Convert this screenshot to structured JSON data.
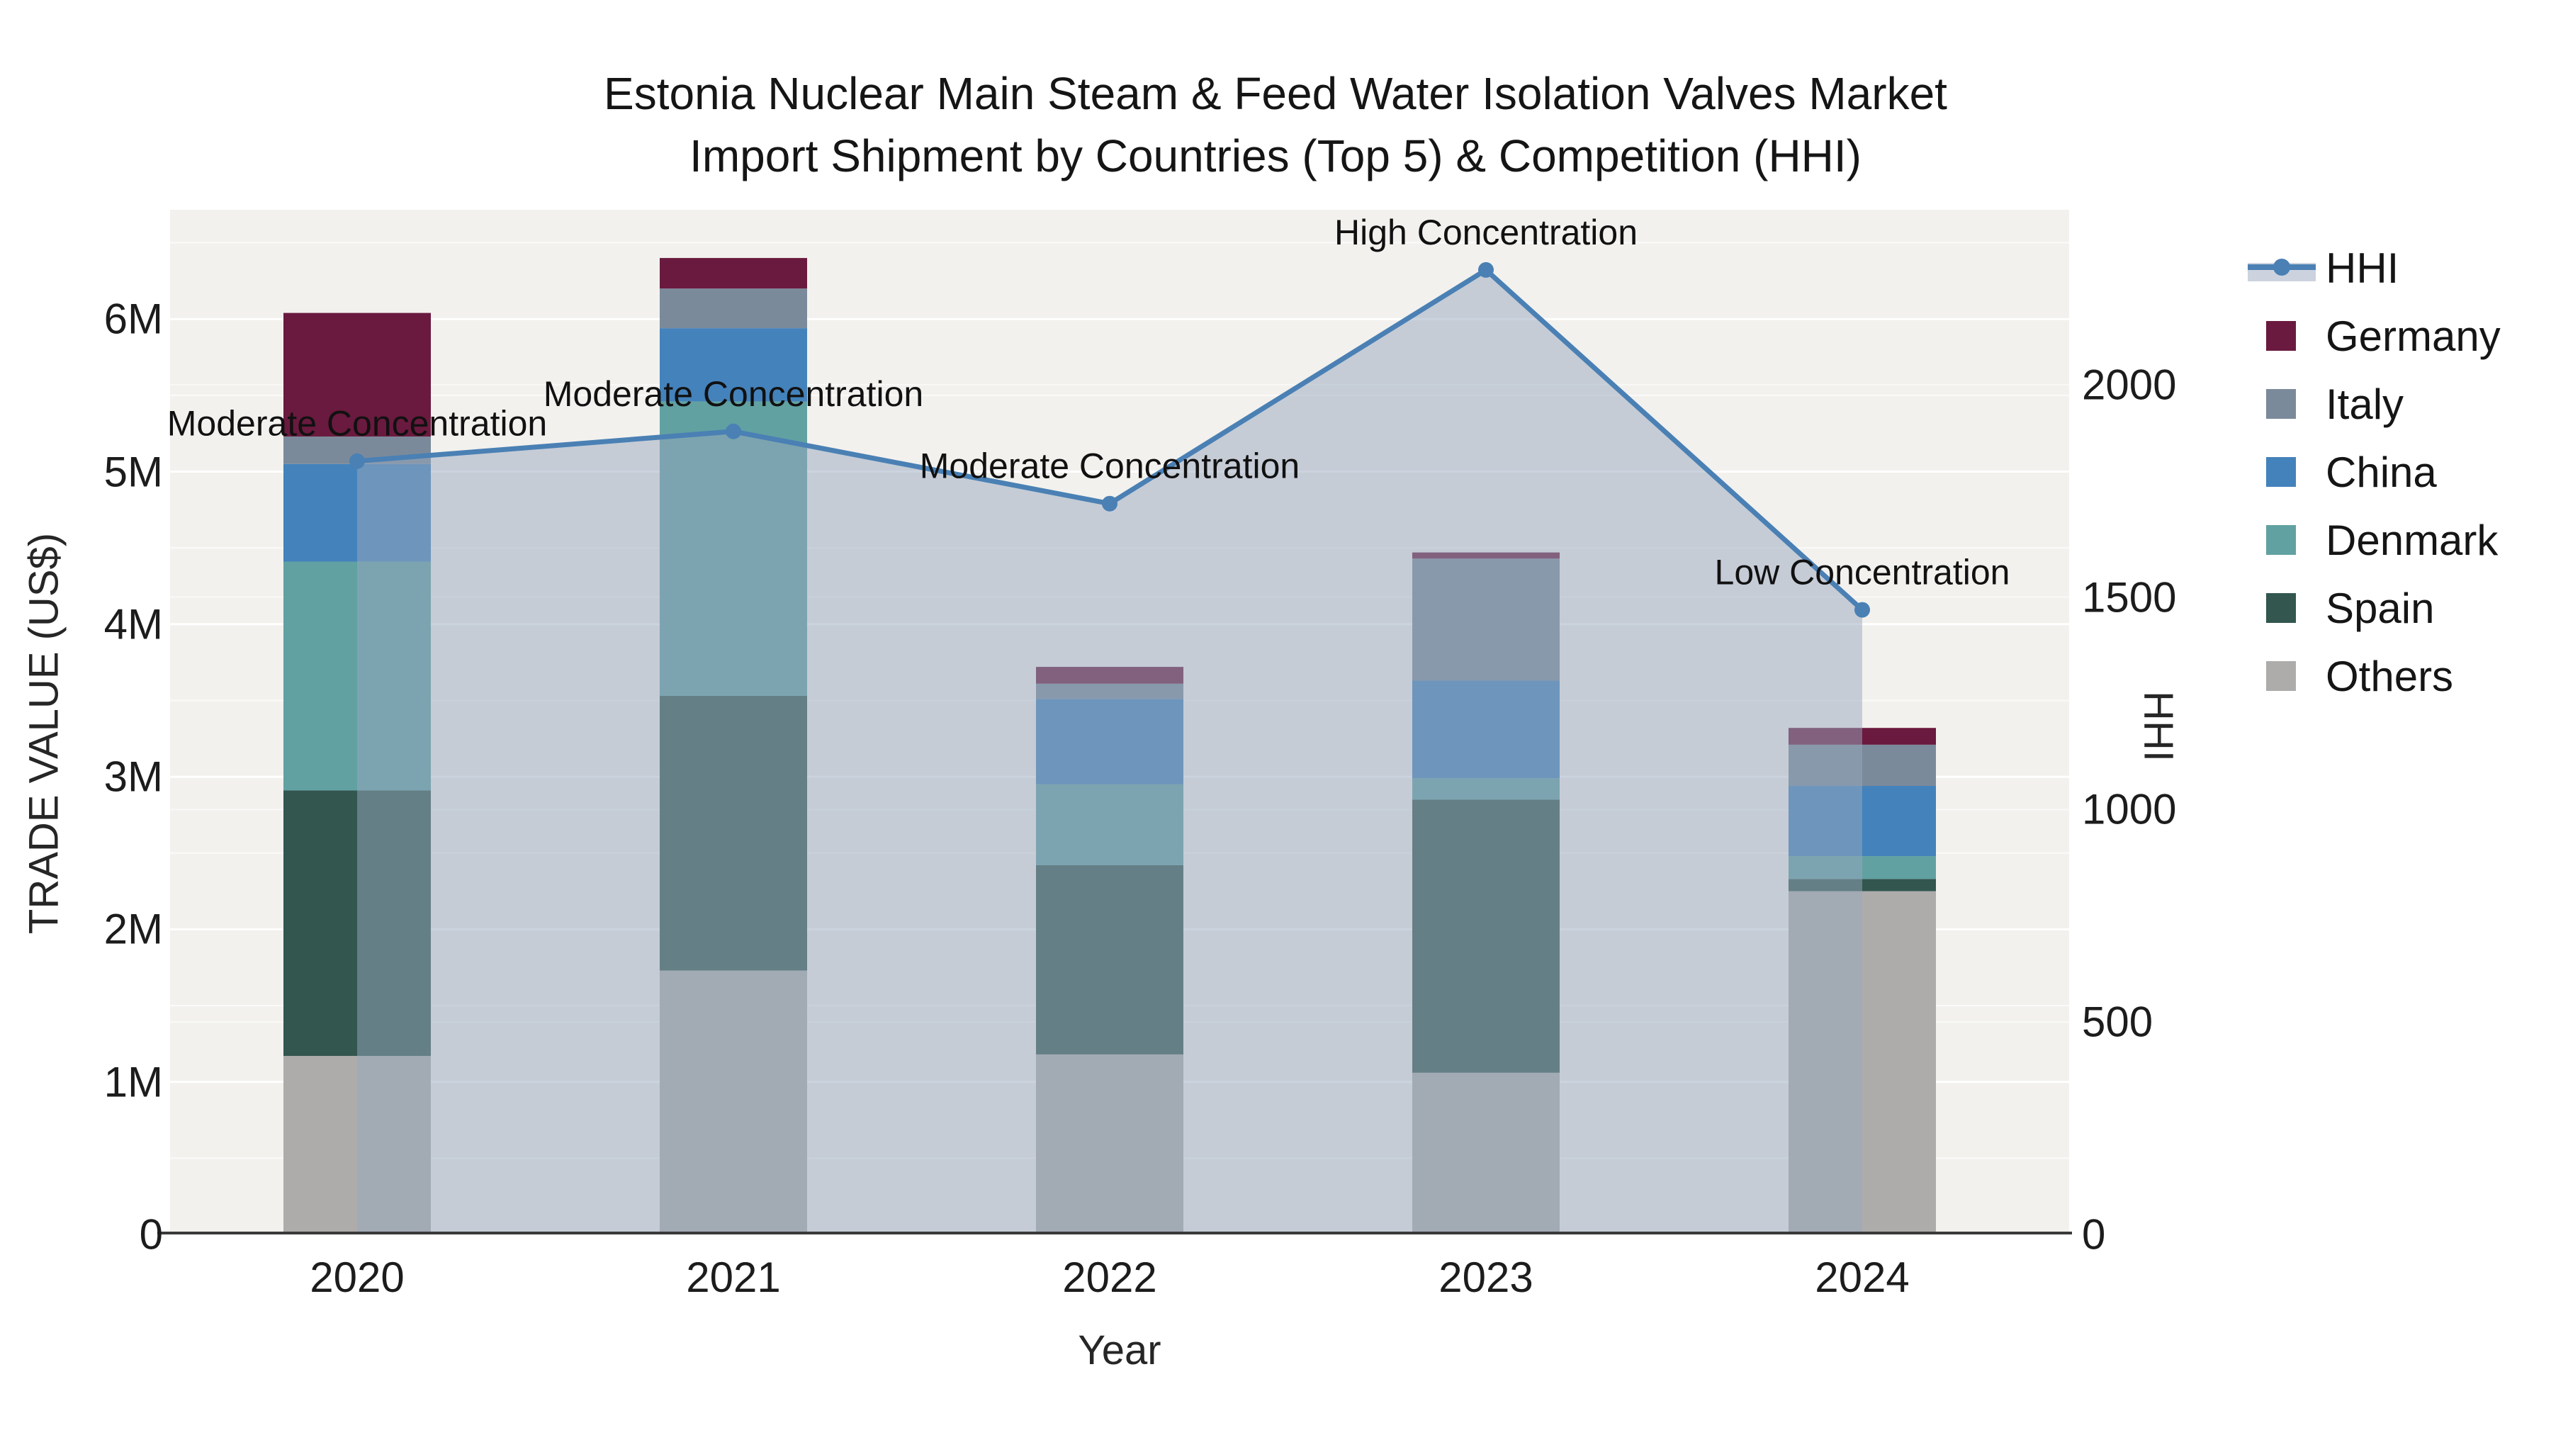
{
  "title": {
    "line1": "Estonia Nuclear Main Steam & Feed Water Isolation Valves Market",
    "line2": "Import Shipment by Countries (Top 5) & Competition (HHI)"
  },
  "axes": {
    "x": {
      "label": "Year"
    },
    "y_left": {
      "label": "TRADE VALUE (US$)",
      "ticks": [
        "0",
        "1M",
        "2M",
        "3M",
        "4M",
        "5M",
        "6M"
      ]
    },
    "y_right": {
      "label": "HHI",
      "ticks": [
        "0",
        "500",
        "1000",
        "1500",
        "2000"
      ]
    }
  },
  "legend_items": [
    {
      "name": "HHI",
      "kind": "line",
      "color": "#4a80b4"
    },
    {
      "name": "Germany",
      "kind": "swatch",
      "color": "#6a1a3e"
    },
    {
      "name": "Italy",
      "kind": "swatch",
      "color": "#7b8a9a"
    },
    {
      "name": "China",
      "kind": "swatch",
      "color": "#4482bb"
    },
    {
      "name": "Denmark",
      "kind": "swatch",
      "color": "#61a1a2"
    },
    {
      "name": "Spain",
      "kind": "swatch",
      "color": "#33564f"
    },
    {
      "name": "Others",
      "kind": "swatch",
      "color": "#adacab"
    }
  ],
  "chart_data": {
    "type": "combo-stacked-bar-line",
    "categories": [
      "2020",
      "2021",
      "2022",
      "2023",
      "2024"
    ],
    "bar_unit": "US$ millions",
    "bar_stack_order_bottom_to_top": [
      "Others",
      "Spain",
      "Denmark",
      "China",
      "Italy",
      "Germany"
    ],
    "series": [
      {
        "name": "Others",
        "color": "#adacab",
        "values": [
          1.17,
          1.73,
          1.18,
          1.06,
          2.25
        ]
      },
      {
        "name": "Spain",
        "color": "#33564f",
        "values": [
          1.74,
          1.8,
          1.24,
          1.79,
          0.08
        ]
      },
      {
        "name": "Denmark",
        "color": "#61a1a2",
        "values": [
          1.5,
          1.93,
          0.53,
          0.14,
          0.15
        ]
      },
      {
        "name": "China",
        "color": "#4482bb",
        "values": [
          0.64,
          0.48,
          0.56,
          0.64,
          0.46
        ]
      },
      {
        "name": "Italy",
        "color": "#7b8a9a",
        "values": [
          0.18,
          0.26,
          0.1,
          0.8,
          0.27
        ]
      },
      {
        "name": "Germany",
        "color": "#6a1a3e",
        "values": [
          0.81,
          0.2,
          0.11,
          0.04,
          0.11
        ]
      }
    ],
    "bar_totals": [
      6.04,
      6.4,
      3.72,
      4.47,
      3.32
    ],
    "line_series": {
      "name": "HHI",
      "axis": "right",
      "color": "#4a80b4",
      "fill_color": "rgba(152,167,190,0.5)",
      "values": [
        1820,
        1890,
        1720,
        2270,
        1470
      ]
    },
    "annotations": [
      {
        "category": "2020",
        "text": "Moderate Concentration"
      },
      {
        "category": "2021",
        "text": "Moderate Concentration"
      },
      {
        "category": "2022",
        "text": "Moderate Concentration"
      },
      {
        "category": "2023",
        "text": "High Concentration"
      },
      {
        "category": "2024",
        "text": "Low Concentration"
      }
    ],
    "ylim_left_m": [
      0,
      6.72
    ],
    "ylim_right": [
      0,
      2412
    ],
    "grid": true,
    "legend_position": "right"
  },
  "style_colors": {
    "plot_background": "#f2f1ee",
    "page_background": "#ffffff",
    "gridline": "#ffffff",
    "axis_line": "#3a3a3a",
    "text": "#1c1c1c"
  }
}
